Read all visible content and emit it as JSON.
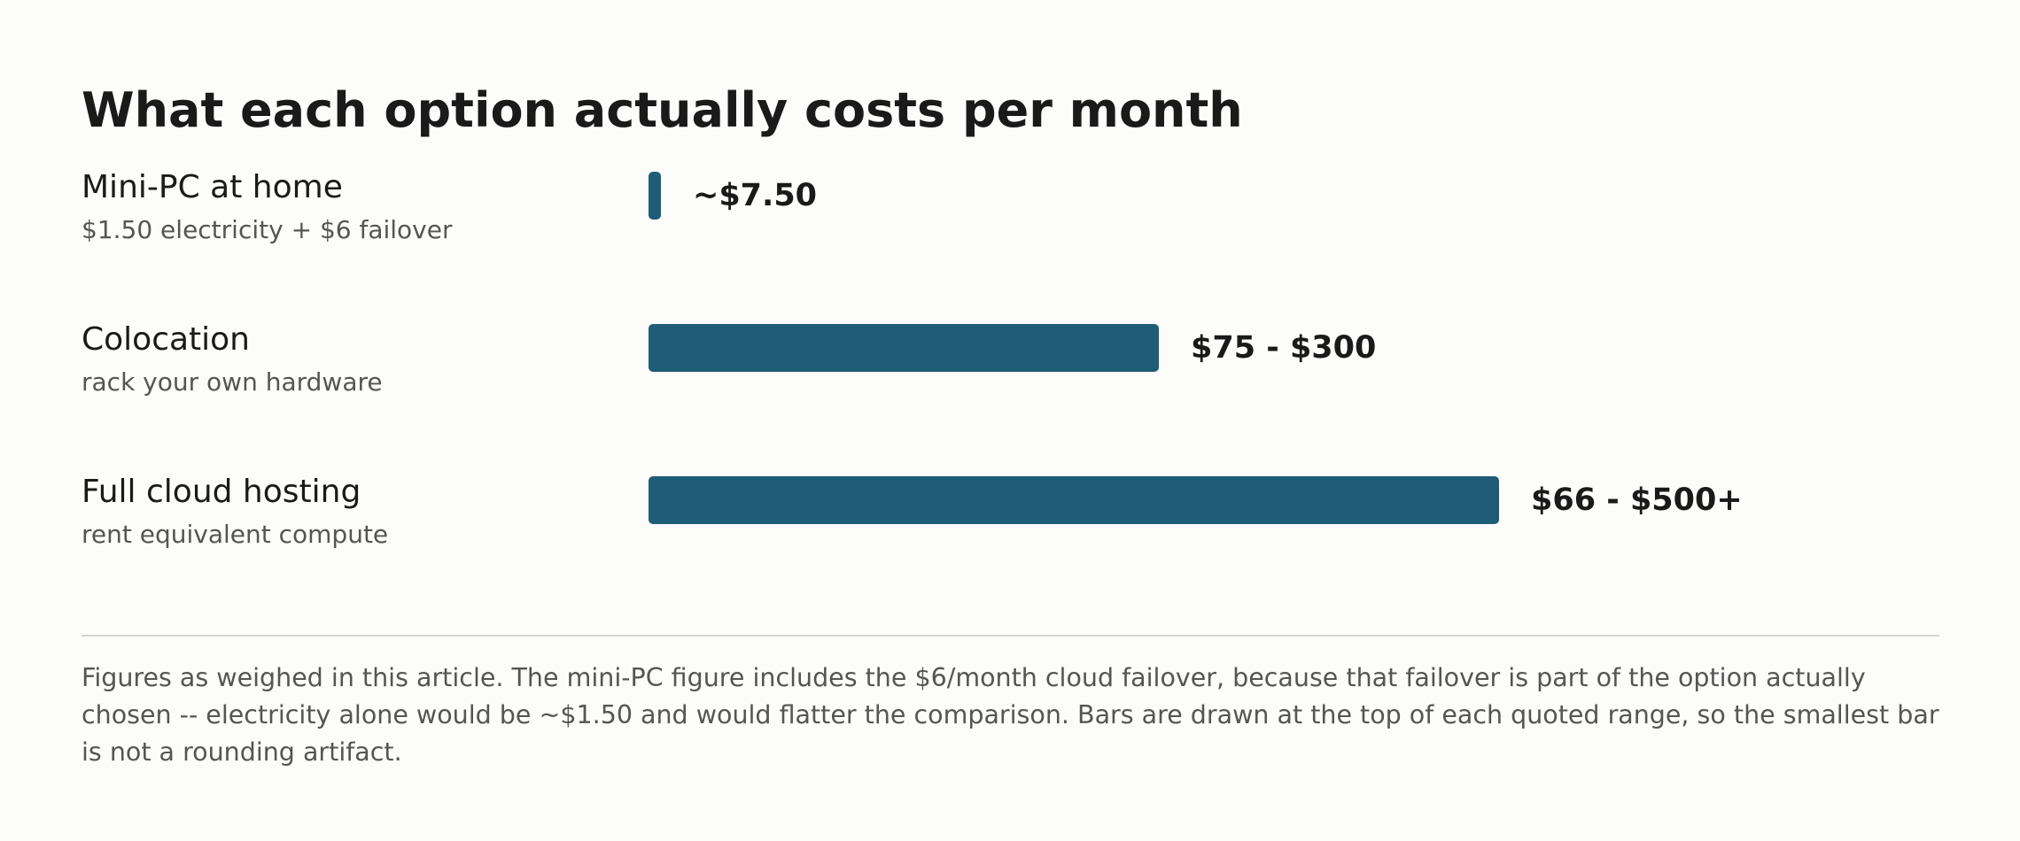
{
  "chart_data": {
    "type": "bar",
    "orientation": "horizontal",
    "title": "What each option actually costs per month",
    "categories": [
      "Mini-PC at home",
      "Colocation",
      "Full cloud hosting"
    ],
    "subtitles": [
      "$1.50 electricity + $6 failover",
      "rack your own hardware",
      "rent equivalent compute"
    ],
    "values": [
      7.5,
      300,
      500
    ],
    "value_labels": [
      "~$7.50",
      "$75 - $300",
      "$66 - $500+"
    ],
    "xlim": [
      0,
      500
    ],
    "bar_color": "#1f5c77",
    "grid": false,
    "legend": "none"
  },
  "footnote": "Figures as weighed in this article. The mini-PC figure includes the $6/month cloud failover, because that failover is part of the option actually chosen -- electricity alone would be ~$1.50 and would flatter the comparison. Bars are drawn at the top of each quoted range, so the smallest bar is not a rounding artifact."
}
